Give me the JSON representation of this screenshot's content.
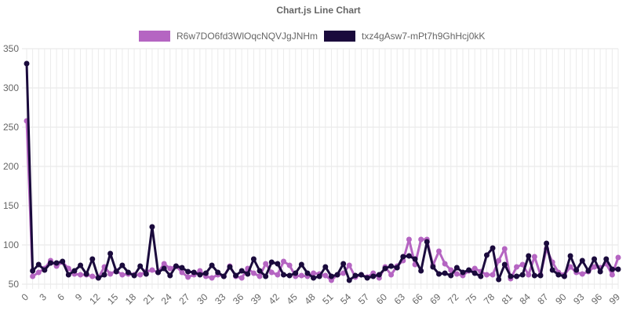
{
  "chart_data": {
    "type": "line",
    "title": "Chart.js Line Chart",
    "xlabel": "",
    "ylabel": "",
    "ylim": [
      50,
      350
    ],
    "yticks": [
      50,
      100,
      150,
      200,
      250,
      300,
      350
    ],
    "x": [
      0,
      1,
      2,
      3,
      4,
      5,
      6,
      7,
      8,
      9,
      10,
      11,
      12,
      13,
      14,
      15,
      16,
      17,
      18,
      19,
      20,
      21,
      22,
      23,
      24,
      25,
      26,
      27,
      28,
      29,
      30,
      31,
      32,
      33,
      34,
      35,
      36,
      37,
      38,
      39,
      40,
      41,
      42,
      43,
      44,
      45,
      46,
      47,
      48,
      49,
      50,
      51,
      52,
      53,
      54,
      55,
      56,
      57,
      58,
      59,
      60,
      61,
      62,
      63,
      64,
      65,
      66,
      67,
      68,
      69,
      70,
      71,
      72,
      73,
      74,
      75,
      76,
      77,
      78,
      79,
      80,
      81,
      82,
      83,
      84,
      85,
      86,
      87,
      88,
      89,
      90,
      91,
      92,
      93,
      94,
      95,
      96,
      97,
      98,
      99
    ],
    "xtick_labels": [
      "0",
      "3",
      "6",
      "9",
      "12",
      "15",
      "18",
      "21",
      "24",
      "27",
      "30",
      "33",
      "36",
      "39",
      "42",
      "45",
      "48",
      "51",
      "54",
      "57",
      "60",
      "63",
      "66",
      "69",
      "72",
      "75",
      "78",
      "81",
      "84",
      "87",
      "90",
      "93",
      "96",
      "99"
    ],
    "grid": true,
    "legend_position": "top",
    "series": [
      {
        "name": "R6w7DO6fd3WlOqcNQVJgJNHm",
        "color": "#b565c2",
        "values": [
          258,
          60,
          65,
          70,
          80,
          73,
          78,
          70,
          63,
          62,
          62,
          60,
          58,
          72,
          63,
          67,
          62,
          63,
          62,
          62,
          66,
          68,
          65,
          76,
          70,
          73,
          65,
          59,
          62,
          67,
          60,
          58,
          62,
          60,
          73,
          60,
          58,
          70,
          64,
          60,
          76,
          65,
          62,
          79,
          74,
          60,
          61,
          60,
          64,
          63,
          61,
          55,
          62,
          64,
          74,
          59,
          62,
          59,
          64,
          58,
          72,
          62,
          73,
          80,
          107,
          75,
          107,
          107,
          74,
          92,
          76,
          68,
          63,
          61,
          67,
          70,
          66,
          62,
          62,
          80,
          95,
          57,
          72,
          75,
          62,
          85,
          62,
          95,
          78,
          65,
          62,
          72,
          65,
          63,
          66,
          72,
          71,
          76,
          62,
          84
        ]
      },
      {
        "name": "txz4gAsw7-mPt7h9GhHcj0kK",
        "color": "#1a0a3c",
        "values": [
          331,
          67,
          75,
          68,
          77,
          77,
          79,
          62,
          67,
          74,
          63,
          82,
          58,
          62,
          89,
          66,
          74,
          65,
          61,
          73,
          63,
          123,
          65,
          70,
          61,
          73,
          71,
          66,
          65,
          62,
          64,
          74,
          65,
          60,
          72,
          61,
          67,
          63,
          82,
          67,
          60,
          78,
          76,
          62,
          61,
          64,
          75,
          64,
          58,
          60,
          72,
          60,
          62,
          76,
          55,
          61,
          62,
          58,
          60,
          62,
          70,
          73,
          71,
          85,
          86,
          82,
          67,
          104,
          72,
          63,
          64,
          61,
          71,
          65,
          68,
          64,
          60,
          87,
          96,
          56,
          75,
          60,
          60,
          62,
          86,
          61,
          61,
          102,
          68,
          62,
          60,
          86,
          68,
          80,
          67,
          82,
          66,
          82,
          69,
          69
        ]
      }
    ]
  }
}
